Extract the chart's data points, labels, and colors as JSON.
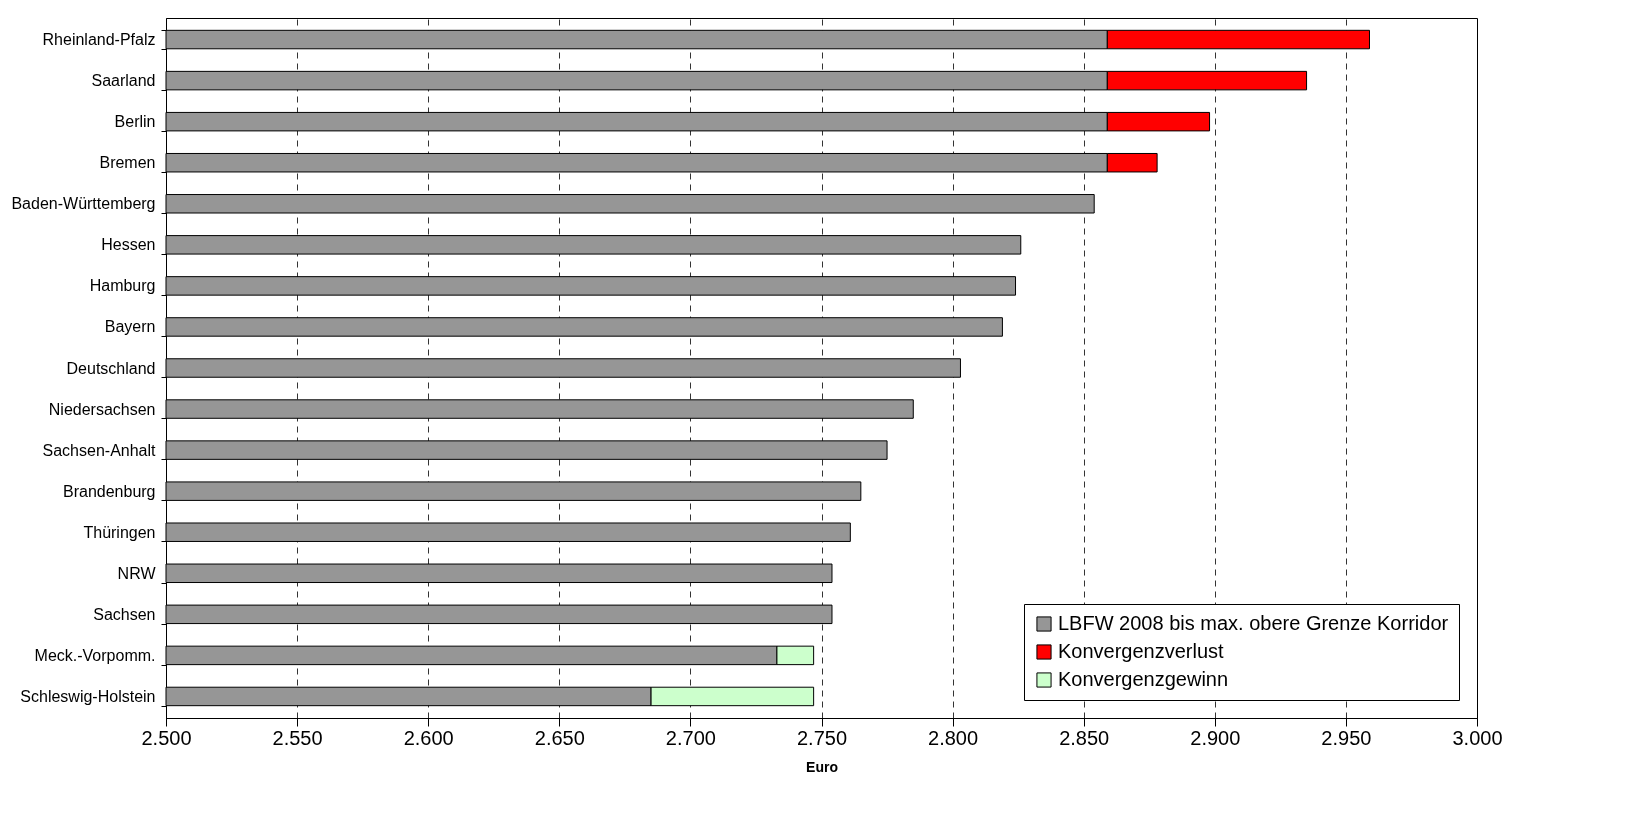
{
  "chart_data": {
    "type": "bar",
    "orientation": "horizontal",
    "xlabel": "Euro",
    "categories": [
      "Rheinland-Pfalz",
      "Saarland",
      "Berlin",
      "Bremen",
      "Baden-Württemberg",
      "Hessen",
      "Hamburg",
      "Bayern",
      "Deutschland",
      "Niedersachsen",
      "Sachsen-Anhalt",
      "Brandenburg",
      "Thüringen",
      "NRW",
      "Sachsen",
      "Meck.-Vorpomm.",
      "Schleswig-Holstein"
    ],
    "series": [
      {
        "name": "LBFW 2008 bis max. obere Grenze Korridor",
        "color": "#969696",
        "values": [
          2859,
          2859,
          2859,
          2859,
          2854,
          2826,
          2824,
          2819,
          2803,
          2785,
          2775,
          2765,
          2761,
          2754,
          2754,
          2733,
          2685
        ]
      },
      {
        "name": "Konvergenzverlust",
        "color": "#ff0000",
        "base": [
          2859,
          2859,
          2859,
          2859,
          null,
          null,
          null,
          null,
          null,
          null,
          null,
          null,
          null,
          null,
          null,
          null,
          null
        ],
        "values": [
          100,
          76,
          39,
          19,
          null,
          null,
          null,
          null,
          null,
          null,
          null,
          null,
          null,
          null,
          null,
          null,
          null
        ]
      },
      {
        "name": "Konvergenzgewinn",
        "color": "#ccffcc",
        "base": [
          null,
          null,
          null,
          null,
          null,
          null,
          null,
          null,
          null,
          null,
          null,
          null,
          null,
          null,
          null,
          2733,
          2685
        ],
        "values": [
          null,
          null,
          null,
          null,
          null,
          null,
          null,
          null,
          null,
          null,
          null,
          null,
          null,
          null,
          null,
          14,
          62
        ]
      }
    ],
    "xlim": [
      2500,
      3000
    ],
    "xticks": [
      {
        "value": 2500,
        "label": "2.500"
      },
      {
        "value": 2550,
        "label": "2.550"
      },
      {
        "value": 2600,
        "label": "2.600"
      },
      {
        "value": 2650,
        "label": "2.650"
      },
      {
        "value": 2700,
        "label": "2.700"
      },
      {
        "value": 2750,
        "label": "2.750"
      },
      {
        "value": 2800,
        "label": "2.800"
      },
      {
        "value": 2850,
        "label": "2.850"
      },
      {
        "value": 2900,
        "label": "2.900"
      },
      {
        "value": 2950,
        "label": "2.950"
      },
      {
        "value": 3000,
        "label": "3.000"
      }
    ],
    "grid": "x",
    "legend": "bottom right"
  }
}
